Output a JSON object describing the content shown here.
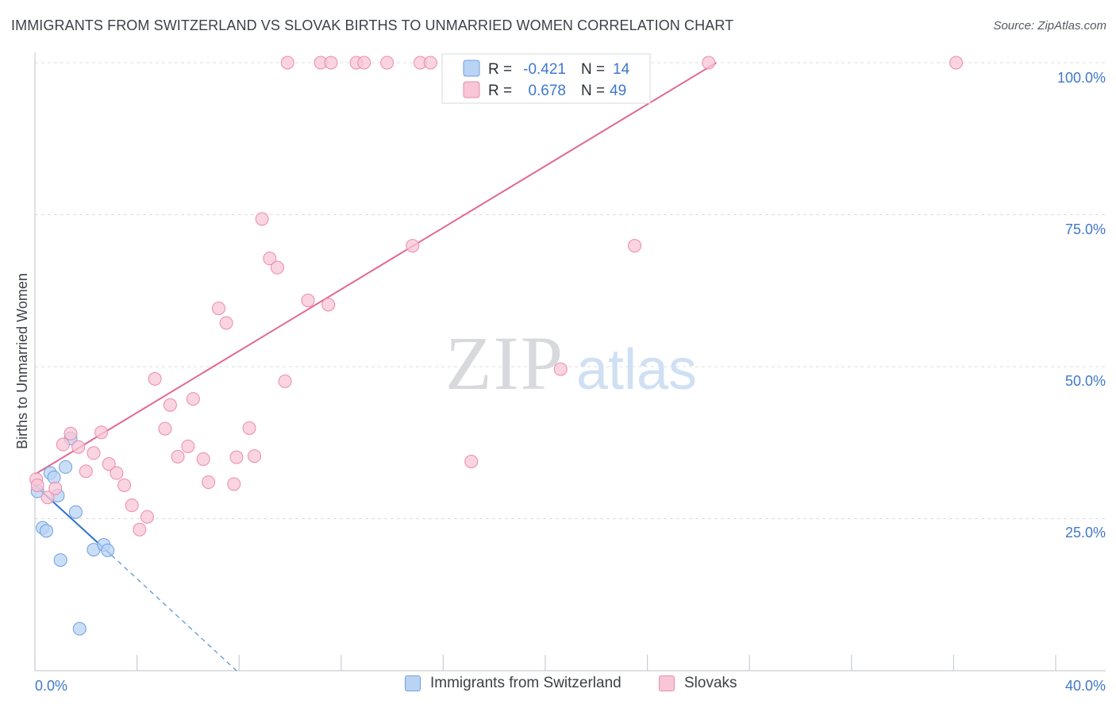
{
  "title": "IMMIGRANTS FROM SWITZERLAND VS SLOVAK BIRTHS TO UNMARRIED WOMEN CORRELATION CHART",
  "source": "Source: ZipAtlas.com",
  "colors": {
    "blue_fill": "#b9d3f5",
    "blue_stroke": "#6f9fdc",
    "blue_line": "#2f73c8",
    "pink_fill": "#f8c6d6",
    "pink_stroke": "#e98cab",
    "pink_line": "#e26892",
    "axis_text": "#3f78cc",
    "grid": "#d9dce1"
  },
  "chart_data": {
    "type": "scatter",
    "title": "IMMIGRANTS FROM SWITZERLAND VS SLOVAK BIRTHS TO UNMARRIED WOMEN CORRELATION CHART",
    "xlabel": "",
    "ylabel": "Births to Unmarried Women",
    "xlim": [
      0,
      40
    ],
    "ylim": [
      0,
      100
    ],
    "x_tick_labels": [
      "0.0%",
      "40.0%"
    ],
    "y_tick_labels": [
      "25.0%",
      "50.0%",
      "75.0%",
      "100.0%"
    ],
    "y_ticks": [
      25,
      50,
      75,
      100
    ],
    "legend_position": "top-center",
    "watermark": {
      "zip": "ZIP",
      "atlas": "atlas"
    },
    "series": [
      {
        "name": "Immigrants from Switzerland",
        "key": "blue",
        "r_label": "R =",
        "r_value": "-0.421",
        "n_label": "N =",
        "n_value": "14",
        "points": [
          {
            "x": 0.1,
            "y": 29.5
          },
          {
            "x": 0.3,
            "y": 23.5
          },
          {
            "x": 0.45,
            "y": 23.0
          },
          {
            "x": 0.6,
            "y": 32.5
          },
          {
            "x": 0.75,
            "y": 31.8
          },
          {
            "x": 0.9,
            "y": 28.8
          },
          {
            "x": 1.0,
            "y": 18.2
          },
          {
            "x": 1.2,
            "y": 33.5
          },
          {
            "x": 1.4,
            "y": 38.2
          },
          {
            "x": 1.6,
            "y": 26.1
          },
          {
            "x": 1.75,
            "y": 6.9
          },
          {
            "x": 2.3,
            "y": 19.9
          },
          {
            "x": 2.7,
            "y": 20.7
          },
          {
            "x": 2.85,
            "y": 19.8
          }
        ],
        "trend": {
          "x1": 0,
          "y1": 30.5,
          "x2": 3.0,
          "y2": 19.0,
          "dash_x2": 7.9,
          "dash_y2": 0
        }
      },
      {
        "name": "Slovaks",
        "key": "pink",
        "r_label": "R =",
        "r_value": "0.678",
        "n_label": "N =",
        "n_value": "49",
        "points": [
          {
            "x": 0.05,
            "y": 31.5
          },
          {
            "x": 0.1,
            "y": 30.5
          },
          {
            "x": 0.5,
            "y": 28.5
          },
          {
            "x": 0.8,
            "y": 30.0
          },
          {
            "x": 1.1,
            "y": 37.2
          },
          {
            "x": 1.4,
            "y": 39.0
          },
          {
            "x": 1.7,
            "y": 36.8
          },
          {
            "x": 2.0,
            "y": 32.8
          },
          {
            "x": 2.3,
            "y": 35.8
          },
          {
            "x": 2.6,
            "y": 39.2
          },
          {
            "x": 2.9,
            "y": 34.0
          },
          {
            "x": 3.2,
            "y": 32.5
          },
          {
            "x": 3.5,
            "y": 30.5
          },
          {
            "x": 3.8,
            "y": 27.2
          },
          {
            "x": 4.1,
            "y": 23.2
          },
          {
            "x": 4.4,
            "y": 25.3
          },
          {
            "x": 4.7,
            "y": 48.0
          },
          {
            "x": 5.1,
            "y": 39.8
          },
          {
            "x": 5.3,
            "y": 43.7
          },
          {
            "x": 5.6,
            "y": 35.2
          },
          {
            "x": 6.0,
            "y": 36.9
          },
          {
            "x": 6.2,
            "y": 44.7
          },
          {
            "x": 6.6,
            "y": 34.8
          },
          {
            "x": 6.8,
            "y": 31.0
          },
          {
            "x": 7.2,
            "y": 59.6
          },
          {
            "x": 7.5,
            "y": 57.2
          },
          {
            "x": 7.8,
            "y": 30.7
          },
          {
            "x": 7.9,
            "y": 35.1
          },
          {
            "x": 8.4,
            "y": 39.9
          },
          {
            "x": 8.6,
            "y": 35.3
          },
          {
            "x": 8.9,
            "y": 74.3
          },
          {
            "x": 9.2,
            "y": 67.8
          },
          {
            "x": 9.5,
            "y": 66.3
          },
          {
            "x": 9.8,
            "y": 47.6
          },
          {
            "x": 9.9,
            "y": 100
          },
          {
            "x": 10.7,
            "y": 60.9
          },
          {
            "x": 11.2,
            "y": 100
          },
          {
            "x": 11.6,
            "y": 100
          },
          {
            "x": 11.5,
            "y": 60.2
          },
          {
            "x": 12.6,
            "y": 100
          },
          {
            "x": 12.9,
            "y": 100
          },
          {
            "x": 13.8,
            "y": 100
          },
          {
            "x": 14.8,
            "y": 69.9
          },
          {
            "x": 15.1,
            "y": 100
          },
          {
            "x": 15.5,
            "y": 100
          },
          {
            "x": 17.1,
            "y": 34.4
          },
          {
            "x": 20.6,
            "y": 49.6
          },
          {
            "x": 23.5,
            "y": 69.9
          },
          {
            "x": 26.4,
            "y": 100
          },
          {
            "x": 36.1,
            "y": 100
          }
        ],
        "trend": {
          "x1": 0,
          "y1": 32.3,
          "x2": 26.7,
          "y2": 100
        }
      }
    ]
  }
}
